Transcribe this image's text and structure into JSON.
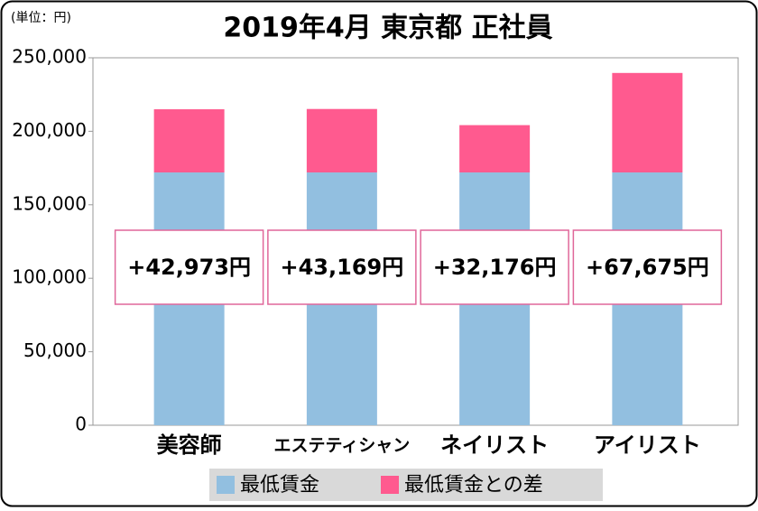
{
  "chart_data": {
    "type": "stacked_bar",
    "title": "2019年4月 東京都 正社員",
    "unit_label": "(単位：円)",
    "categories": [
      "美容師",
      "エステティシャン",
      "ネイリスト",
      "アイリスト"
    ],
    "series": [
      {
        "name": "最低賃金",
        "color": "#92bfe0",
        "values": [
          172000,
          172000,
          172000,
          172000
        ]
      },
      {
        "name": "最低賃金との差",
        "color": "#ff5a8f",
        "values": [
          42973,
          43169,
          32176,
          67675
        ],
        "value_labels": [
          "+42,973円",
          "+43,169円",
          "+32,176円",
          "+67,675円"
        ]
      }
    ],
    "ylim": [
      0,
      250000
    ],
    "yticks": [
      0,
      {
        "value": 50000,
        "label": "50,000"
      },
      {
        "value": 100000,
        "label": "100,000"
      },
      {
        "value": 150000,
        "label": "150,000"
      },
      {
        "value": 200000,
        "label": "200,000"
      },
      {
        "value": 250000,
        "label": "250,000"
      }
    ]
  }
}
